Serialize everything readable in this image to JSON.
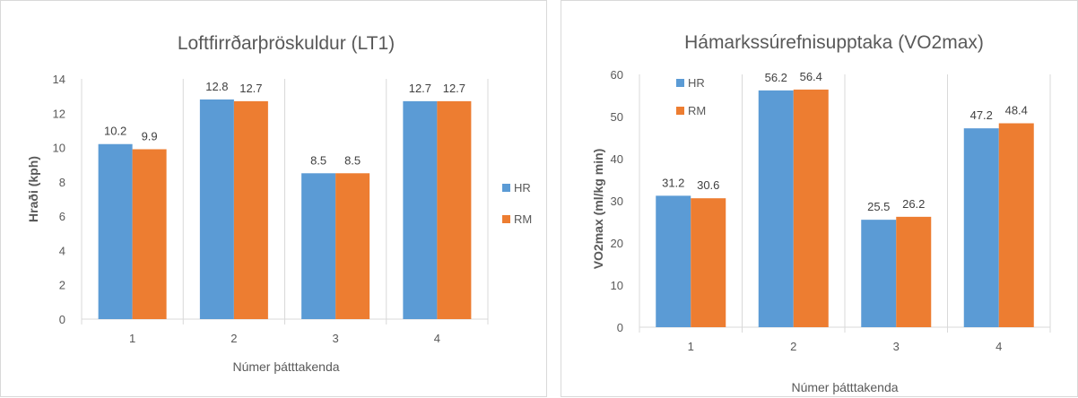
{
  "chart_data": [
    {
      "type": "bar",
      "title": "Loftfirrðarþröskuldur (LT1)",
      "xlabel": "Númer þátttakenda",
      "ylabel": "Hraði (kph)",
      "categories": [
        "1",
        "2",
        "3",
        "4"
      ],
      "series": [
        {
          "name": "HR",
          "values": [
            10.2,
            12.8,
            8.5,
            12.7
          ],
          "labels": [
            "10.2",
            "12.8",
            "8.5",
            "12.7"
          ],
          "color": "#5b9bd5"
        },
        {
          "name": "RM",
          "values": [
            9.9,
            12.7,
            8.5,
            12.7
          ],
          "labels": [
            "9.9",
            "12.7",
            "8.5",
            "12.7"
          ],
          "color": "#ed7d31"
        }
      ],
      "ylim": [
        0,
        14
      ],
      "yticks": [
        "0",
        "2",
        "4",
        "6",
        "8",
        "10",
        "12",
        "14"
      ],
      "legend_position": "right",
      "grid": false
    },
    {
      "type": "bar",
      "title": "Hámarkssúrefnisupptaka (VO2max)",
      "xlabel": "Númer þátttakenda",
      "ylabel": "VO2max (ml/kg min)",
      "categories": [
        "1",
        "2",
        "3",
        "4"
      ],
      "series": [
        {
          "name": "HR",
          "values": [
            31.2,
            56.2,
            25.5,
            47.2
          ],
          "labels": [
            "31.2",
            "56.2",
            "25.5",
            "47.2"
          ],
          "color": "#5b9bd5"
        },
        {
          "name": "RM",
          "values": [
            30.6,
            56.4,
            26.2,
            48.4
          ],
          "labels": [
            "30.6",
            "56.4",
            "26.2",
            "48.4"
          ],
          "color": "#ed7d31"
        }
      ],
      "ylim": [
        0,
        60
      ],
      "yticks": [
        "0",
        "10",
        "20",
        "30",
        "40",
        "50",
        "60"
      ],
      "legend_position": "top-left",
      "grid": false
    }
  ]
}
